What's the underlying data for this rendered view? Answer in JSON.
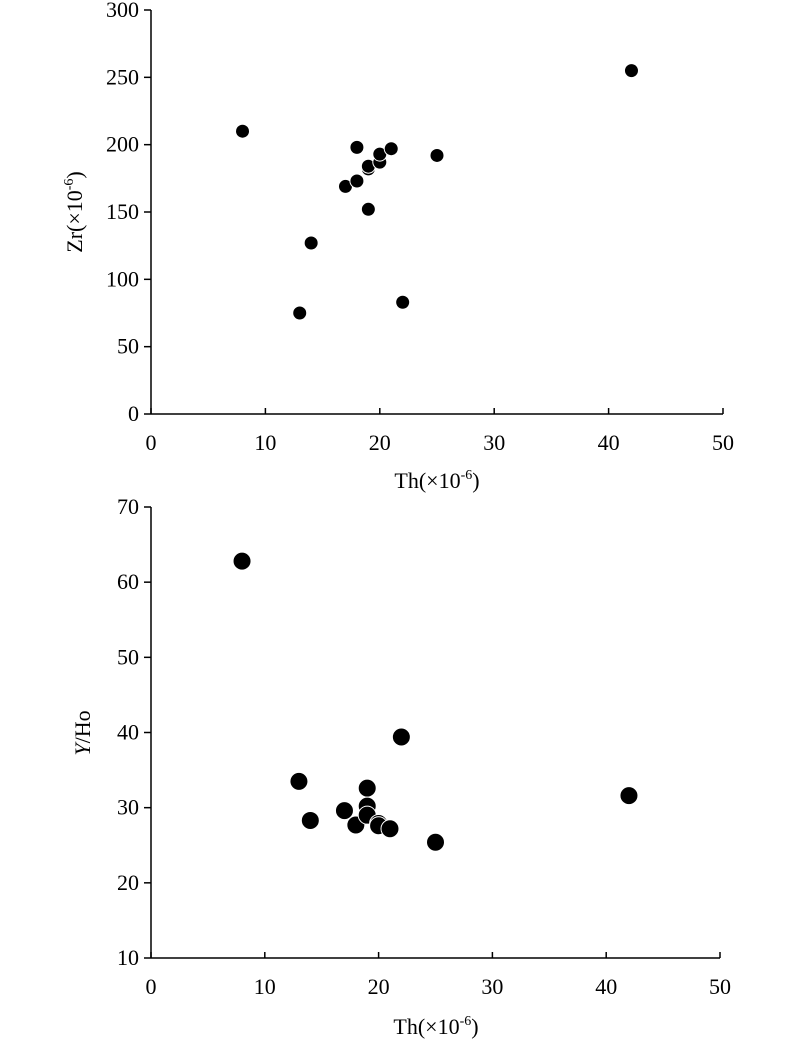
{
  "chart_data": [
    {
      "type": "scatter",
      "title": "",
      "xlabel": "Th(×10",
      "xlabel_sup": "-6",
      "xlabel_end": ")",
      "ylabel": "Zr(×10",
      "ylabel_sup": "-6",
      "ylabel_end": ")",
      "xlim": [
        0,
        50
      ],
      "ylim": [
        0,
        300
      ],
      "xticks": [
        0,
        10,
        20,
        30,
        40,
        50
      ],
      "yticks": [
        0,
        50,
        100,
        150,
        200,
        250,
        300
      ],
      "grid": false,
      "marker_color": "#000000",
      "x": [
        8,
        13,
        14,
        17,
        18,
        18,
        19,
        19,
        19,
        20,
        20,
        21,
        22,
        25,
        42
      ],
      "y": [
        210,
        75,
        127,
        169,
        173,
        198,
        152,
        182,
        184,
        187,
        193,
        197,
        83,
        192,
        255
      ]
    },
    {
      "type": "scatter",
      "title": "",
      "xlabel": "Th(×10",
      "xlabel_sup": "-6",
      "xlabel_end": ")",
      "ylabel": "Y",
      "ylabel_end": "/Ho",
      "xlim": [
        0,
        50
      ],
      "ylim": [
        10,
        70
      ],
      "xticks": [
        0,
        10,
        20,
        30,
        40,
        50
      ],
      "yticks": [
        10,
        20,
        30,
        40,
        50,
        60,
        70
      ],
      "grid": false,
      "marker_color": "#000000",
      "x": [
        8,
        13,
        14,
        17,
        18,
        19,
        19,
        19,
        20,
        20,
        21,
        22,
        25,
        42
      ],
      "y": [
        62.8,
        33.5,
        28.3,
        29.6,
        27.7,
        32.6,
        30.2,
        29.0,
        27.9,
        27.6,
        27.2,
        39.4,
        25.4,
        31.6
      ]
    }
  ]
}
